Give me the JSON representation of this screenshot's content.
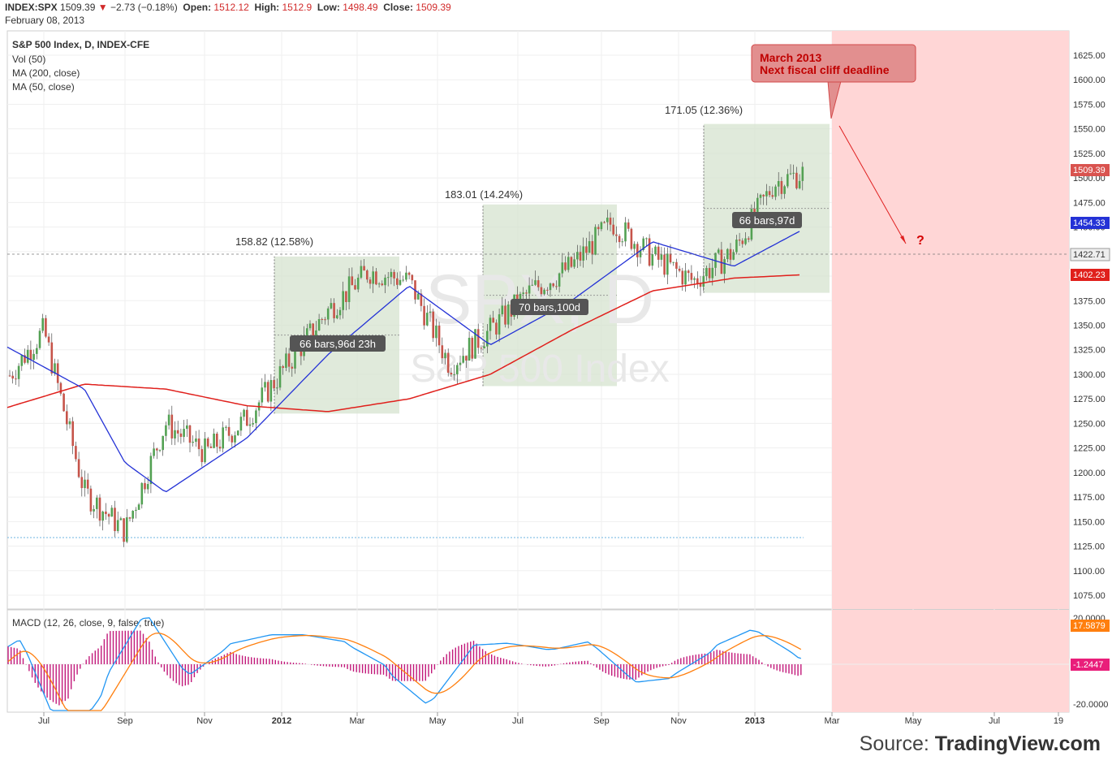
{
  "header": {
    "symbol": "INDEX:SPX",
    "last": "1509.39",
    "change_arrow": "▼",
    "change": "−2.73 (−0.18%)",
    "open_label": "Open:",
    "open": "1512.12",
    "high_label": "High:",
    "high": "1512.9",
    "low_label": "Low:",
    "low": "1498.49",
    "close_label": "Close:",
    "close": "1509.39",
    "date": "February 08, 2013"
  },
  "legend": {
    "title": "S&P 500 Index, D, INDEX-CFE",
    "vol": "Vol (50)",
    "ma200": "MA (200, close)",
    "ma50": "MA (50, close)"
  },
  "watermark": {
    "symbol": "SPX, D",
    "name": "S&P 500 Index"
  },
  "annotations": {
    "callout_line1": "March 2013",
    "callout_line2": "Next fiscal cliff deadline",
    "question": "?",
    "ranges": [
      {
        "change": "158.82 (12.58%)",
        "bars": "66 bars,96d 23h"
      },
      {
        "change": "183.01 (14.24%)",
        "bars": "70 bars,100d"
      },
      {
        "change": "171.05 (12.36%)",
        "bars": "66 bars,97d"
      }
    ]
  },
  "price_badges": {
    "last": "1509.39",
    "ma50": "1454.33",
    "crosshair": "1422.71",
    "ma200": "1402.23"
  },
  "macd": {
    "label": "MACD (12, 26, close, 9, false, true)",
    "badge_macd": "17.5879",
    "badge_hist": "-1.2447",
    "ticks": [
      "20.0000",
      "-20.0000"
    ]
  },
  "source": {
    "prefix": "Source: ",
    "brand": "TradingView.com"
  },
  "colors": {
    "up": "#53a153",
    "down": "#c6544a",
    "ma200": "#e0201c",
    "ma50": "#2432d6",
    "macd": "#2196f3",
    "signal": "#ff7f0e",
    "hist": "#c2187a",
    "range_fill": "#d6e3cf",
    "future_fill": "#ffd6d6",
    "callout": "#e28f8f"
  },
  "chart_data": {
    "type": "line",
    "title": "S&P 500 Index, D, INDEX-CFE",
    "y_axis": {
      "ylim": [
        1060,
        1645
      ],
      "ticks": [
        1075,
        1100,
        1125,
        1150,
        1175,
        1200,
        1225,
        1250,
        1275,
        1300,
        1325,
        1350,
        1375,
        1400,
        1425,
        1450,
        1475,
        1500,
        1525,
        1550,
        1575,
        1600,
        1625
      ]
    },
    "x_axis": {
      "tick_labels": [
        "Jul",
        "Sep",
        "Nov",
        "2012",
        "Mar",
        "May",
        "Jul",
        "Sep",
        "Nov",
        "2013",
        "Mar",
        "May",
        "Jul",
        "19"
      ]
    },
    "grid": true,
    "series": [
      {
        "name": "INDEX:SPX",
        "x": [
          "2011-06",
          "2011-07",
          "2011-08",
          "2011-09",
          "2011-10",
          "2011-11",
          "2011-12",
          "2012-01",
          "2012-02",
          "2012-03",
          "2012-04",
          "2012-05",
          "2012-06",
          "2012-07",
          "2012-08",
          "2012-09",
          "2012-10",
          "2012-11",
          "2012-12",
          "2013-01",
          "2013-02"
        ],
        "values": [
          1290,
          1345,
          1180,
          1140,
          1250,
          1220,
          1255,
          1310,
          1365,
          1405,
          1395,
          1310,
          1345,
          1385,
          1410,
          1455,
          1420,
          1395,
          1425,
          1495,
          1509
        ]
      },
      {
        "name": "MA (200, close)",
        "x": [
          "2011-06",
          "2011-08",
          "2011-10",
          "2011-12",
          "2012-02",
          "2012-04",
          "2012-06",
          "2012-08",
          "2012-10",
          "2012-12",
          "2013-02"
        ],
        "values": [
          1265,
          1290,
          1285,
          1268,
          1262,
          1275,
          1300,
          1345,
          1385,
          1398,
          1402
        ]
      },
      {
        "name": "MA (50, close)",
        "x": [
          "2011-06",
          "2011-08",
          "2011-09",
          "2011-10",
          "2011-12",
          "2012-02",
          "2012-04",
          "2012-06",
          "2012-08",
          "2012-10",
          "2012-12",
          "2013-02"
        ],
        "values": [
          1330,
          1285,
          1210,
          1180,
          1235,
          1320,
          1390,
          1330,
          1375,
          1435,
          1410,
          1454
        ]
      }
    ]
  }
}
